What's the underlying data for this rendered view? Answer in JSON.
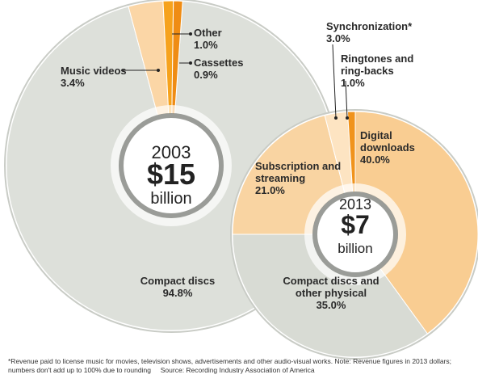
{
  "chart_data": [
    {
      "type": "pie",
      "center_text": [
        "2003",
        "$15",
        "billion"
      ],
      "categories": [
        "Compact discs",
        "Music videos",
        "Other",
        "Cassettes"
      ],
      "values": [
        94.8,
        3.4,
        1.0,
        0.9
      ],
      "value_labels": [
        "94.8%",
        "3.4%",
        "1.0%",
        "0.9%"
      ],
      "colors": [
        "#dde0da",
        "#fbd6a6",
        "#f6a21c",
        "#ef8c14"
      ]
    },
    {
      "type": "pie",
      "center_text": [
        "2013",
        "$7",
        "billion"
      ],
      "categories": [
        "Digital downloads",
        "Compact discs and other physical",
        "Subscription and streaming",
        "Synchronization*",
        "Ringtones and ring-backs"
      ],
      "values": [
        40.0,
        35.0,
        21.0,
        3.0,
        1.0
      ],
      "value_labels": [
        "40.0%",
        "35.0%",
        "21.0%",
        "3.0%",
        "1.0%"
      ],
      "colors": [
        "#f9cd92",
        "#d8dbd4",
        "#f9d4a2",
        "#fde4c2",
        "#f0931c"
      ]
    }
  ],
  "notes": [
    "*Revenue paid to license music for movies, television shows, advertisements and other audio-visual works.  Note: Revenue figures in 2013 dollars;",
    "numbers don't add up to 100% due to rounding"
  ],
  "source": "Source: Recording Industry Association of America"
}
